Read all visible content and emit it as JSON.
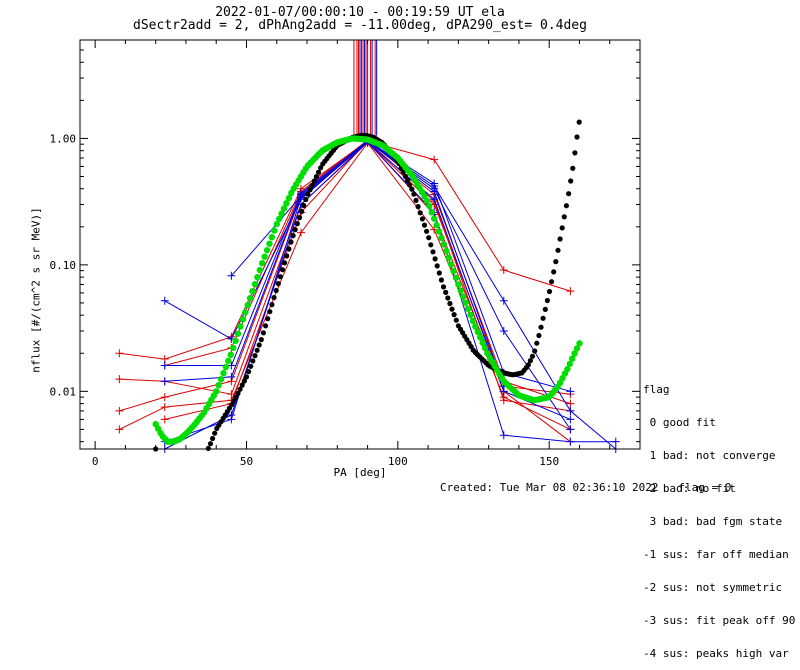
{
  "title_line1": "2022-01-07/00:00:10 - 00:19:59 UT ela",
  "title_line2": "dSectr2add = 2, dPhAng2add = -11.00deg, dPA290_est=   0.4deg",
  "footer": {
    "created": "Created: Tue Mar 08 02:36:10 2022",
    "flag": "flag = 0"
  },
  "legend": {
    "title": "flag",
    "entries": [
      " 0 good fit",
      " 1 bad: not converge",
      " 2 bad: no fit",
      " 3 bad: bad fgm state",
      "-1 sus: far off median",
      "-2 sus: not symmetric",
      "-3 sus: fit peak off 90",
      "-4 sus: peaks high var"
    ]
  },
  "chart_data": {
    "type": "line",
    "xlabel": "PA [deg]",
    "ylabel": "nflux [#/(cm^2 s sr MeV)]",
    "xlim": [
      -5,
      180
    ],
    "ylim": [
      0.0035,
      6
    ],
    "yscale": "log",
    "x_ticks": [
      0,
      50,
      100,
      150
    ],
    "y_ticks": [
      {
        "value": 0.01,
        "label": "0.01"
      },
      {
        "value": 0.1,
        "label": "0.10"
      },
      {
        "value": 1,
        "label": "1.00"
      }
    ],
    "colors": {
      "red": "#dd0000",
      "blue": "#0000dd",
      "black": "#000000",
      "green": "#00dd00"
    },
    "series": [
      {
        "color": "red",
        "x": [
          8,
          23,
          45,
          68,
          90,
          112,
          135,
          157
        ],
        "y": [
          0.02,
          0.018,
          0.027,
          0.4,
          0.95,
          0.68,
          0.091,
          0.062
        ]
      },
      {
        "color": "red",
        "x": [
          8,
          23,
          45,
          68,
          90,
          112,
          135,
          157
        ],
        "y": [
          0.007,
          0.009,
          0.012,
          0.35,
          0.93,
          0.3,
          0.011,
          0.0095
        ]
      },
      {
        "color": "red",
        "x": [
          8,
          23,
          45,
          68,
          90,
          112,
          135,
          157
        ],
        "y": [
          0.005,
          0.0075,
          0.0085,
          0.18,
          0.92,
          0.19,
          0.009,
          0.005
        ]
      },
      {
        "color": "red",
        "x": [
          8,
          23,
          45,
          68,
          90,
          112,
          135,
          157
        ],
        "y": [
          0.0125,
          0.012,
          0.0095,
          0.3,
          0.94,
          0.25,
          0.01,
          0.004
        ]
      },
      {
        "color": "red",
        "x": [
          23,
          45,
          68,
          90,
          112,
          135,
          157
        ],
        "y": [
          0.006,
          0.008,
          0.26,
          0.95,
          0.32,
          0.0085,
          0.007
        ]
      },
      {
        "color": "red",
        "x": [
          23,
          45,
          68,
          90,
          112,
          135,
          157
        ],
        "y": [
          0.016,
          0.022,
          0.38,
          0.97,
          0.36,
          0.012,
          0.008
        ]
      },
      {
        "color": "blue",
        "x": [
          23,
          45,
          68,
          90,
          112,
          135,
          157,
          172
        ],
        "y": [
          0.052,
          0.026,
          0.33,
          0.95,
          0.42,
          0.052,
          0.007,
          0.0035
        ]
      },
      {
        "color": "blue",
        "x": [
          23,
          45,
          68,
          90,
          112,
          135,
          157,
          172
        ],
        "y": [
          0.004,
          0.006,
          0.34,
          0.93,
          0.26,
          0.0045,
          0.004,
          0.004
        ]
      },
      {
        "color": "blue",
        "x": [
          23,
          45,
          68,
          90,
          112,
          135,
          157
        ],
        "y": [
          0.0035,
          0.0065,
          0.3,
          0.93,
          0.33,
          0.01,
          0.006
        ]
      },
      {
        "color": "blue",
        "x": [
          45,
          68,
          90,
          112,
          135,
          157
        ],
        "y": [
          0.082,
          0.35,
          0.95,
          0.4,
          0.03,
          0.005
        ]
      },
      {
        "color": "blue",
        "x": [
          23,
          45,
          68,
          90,
          112,
          135,
          157
        ],
        "y": [
          0.012,
          0.013,
          0.36,
          0.96,
          0.44,
          0.014,
          0.01
        ]
      },
      {
        "color": "blue",
        "x": [
          23,
          45,
          68,
          90,
          112,
          135
        ],
        "y": [
          0.016,
          0.016,
          0.37,
          0.95,
          0.38,
          0.011
        ]
      }
    ],
    "peak_lines": {
      "red_x": [
        85.5,
        86.5,
        87.0,
        88.0,
        88.5,
        89.5,
        90.0,
        91.0,
        92.5
      ],
      "blue_x": [
        87.5,
        89.0,
        91.5,
        93.0
      ],
      "y_from": 1.05,
      "y_to": 6.0
    },
    "fits": [
      {
        "color": "black",
        "x": [
          20,
          21,
          22,
          23,
          24,
          25
        ],
        "y": [
          0.0035,
          0.003,
          0.0028,
          0.0027,
          0.0027,
          0.0028
        ]
      },
      {
        "color": "black",
        "x": [
          36,
          38,
          40,
          43,
          46,
          50,
          55,
          60,
          65,
          70,
          75,
          80,
          85,
          88,
          90,
          92,
          95,
          100,
          105,
          110,
          115,
          120,
          125,
          130,
          135,
          138,
          141,
          143,
          145,
          147,
          150,
          152,
          154,
          156,
          158,
          159,
          160
        ],
        "y": [
          0.003,
          0.0038,
          0.005,
          0.0065,
          0.0085,
          0.013,
          0.026,
          0.065,
          0.16,
          0.35,
          0.62,
          0.88,
          1.02,
          1.06,
          1.05,
          1.02,
          0.92,
          0.66,
          0.38,
          0.17,
          0.068,
          0.033,
          0.021,
          0.016,
          0.014,
          0.0135,
          0.014,
          0.016,
          0.02,
          0.03,
          0.06,
          0.1,
          0.18,
          0.32,
          0.62,
          0.95,
          1.4
        ]
      },
      {
        "color": "green",
        "x": [
          20,
          22,
          24,
          26,
          28,
          30,
          33,
          36,
          40,
          45,
          50,
          55,
          60,
          65,
          70,
          75,
          80,
          85,
          90,
          95,
          100,
          105,
          110,
          115,
          120,
          125,
          130,
          135,
          140,
          145,
          150,
          153,
          156,
          158,
          160
        ],
        "y": [
          0.0055,
          0.0045,
          0.004,
          0.004,
          0.0042,
          0.0046,
          0.0055,
          0.0068,
          0.01,
          0.02,
          0.045,
          0.1,
          0.21,
          0.38,
          0.6,
          0.8,
          0.93,
          1.0,
          0.98,
          0.88,
          0.7,
          0.5,
          0.31,
          0.15,
          0.07,
          0.035,
          0.019,
          0.012,
          0.0093,
          0.0085,
          0.009,
          0.011,
          0.015,
          0.019,
          0.024
        ]
      }
    ]
  }
}
